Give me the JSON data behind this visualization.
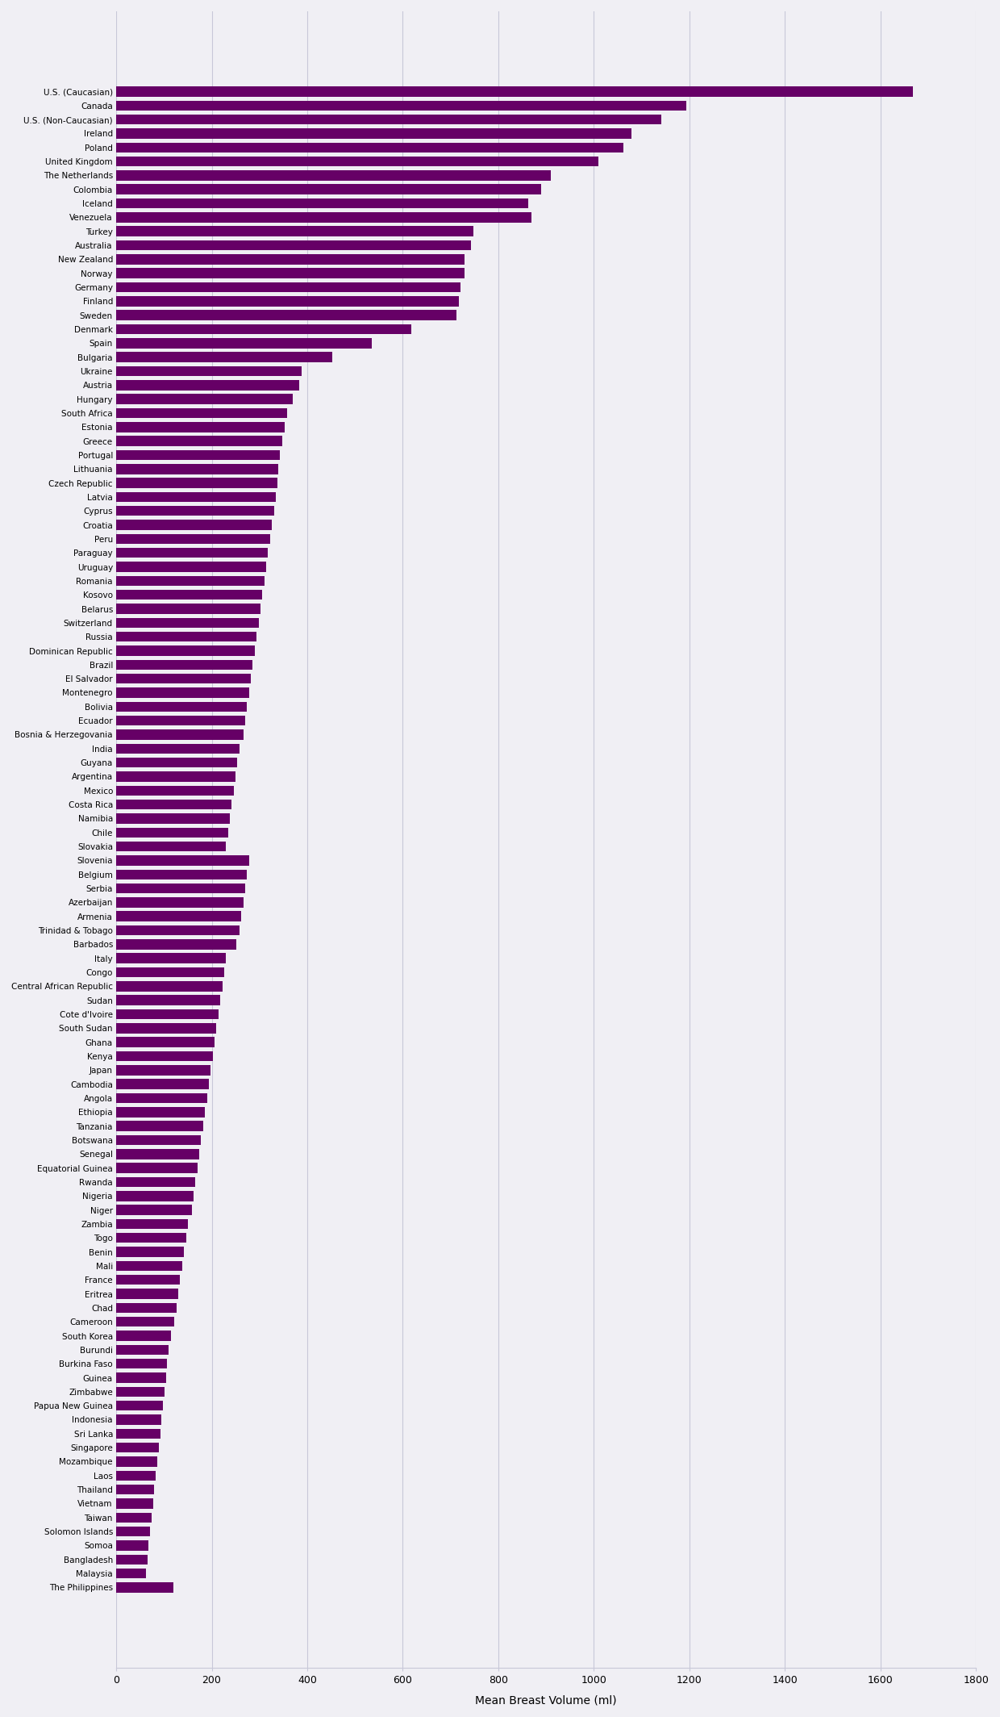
{
  "countries": [
    "U.S. (Caucasian)",
    "Canada",
    "U.S. (Non-Caucasian)",
    "Ireland",
    "Poland",
    "United Kingdom",
    "The Netherlands",
    "Colombia",
    "Iceland",
    "Venezuela",
    "Turkey",
    "Australia",
    "New Zealand",
    "Norway",
    "Germany",
    "Finland",
    "Sweden",
    "Denmark",
    "Spain",
    "Bulgaria",
    "Ukraine",
    "Austria",
    "Hungary",
    "South Africa",
    "Estonia",
    "Greece",
    "Portugal",
    "Lithuania",
    "Czech Republic",
    "Latvia",
    "Cyprus",
    "Croatia",
    "Peru",
    "Paraguay",
    "Uruguay",
    "Romania",
    "Kosovo",
    "Belarus",
    "Switzerland",
    "Russia",
    "Dominican Republic",
    "Brazil",
    "El Salvador",
    "Montenegro",
    "Bolivia",
    "Ecuador",
    "Bosnia & Herzegovania",
    "India",
    "Guyana",
    "Argentina",
    "Mexico",
    "Costa Rica",
    "Namibia",
    "Chile",
    "Slovakia",
    "Slovenia",
    "Belgium",
    "Serbia",
    "Azerbaijan",
    "Armenia",
    "Trinidad & Tobago",
    "Barbados",
    "Italy",
    "Congo",
    "Central African Republic",
    "Sudan",
    "Cote d'Ivoire",
    "South Sudan",
    "Ghana",
    "Kenya",
    "Japan",
    "Cambodia",
    "Angola",
    "Ethiopia",
    "Tanzania",
    "Botswana",
    "Senegal",
    "Equatorial Guinea",
    "Rwanda",
    "Nigeria",
    "Niger",
    "Zambia",
    "Togo",
    "Benin",
    "Mali",
    "France",
    "Eritrea",
    "Chad",
    "Cameroon",
    "South Korea",
    "Burundi",
    "Burkina Faso",
    "Guinea",
    "Zimbabwe",
    "Papua New Guinea",
    "Indonesia",
    "Sri Lanka",
    "Singapore",
    "Mozambique",
    "Laos",
    "Thailand",
    "Vietnam",
    "Taiwan",
    "Solomon Islands",
    "Somoa",
    "Bangladesh",
    "Malaysia",
    "The Philippines"
  ],
  "values": [
    1668,
    1194,
    1142,
    1079,
    1062,
    1010,
    910,
    890,
    863,
    870,
    748,
    742,
    730,
    730,
    720,
    718,
    712,
    618,
    535,
    453,
    388,
    384,
    370,
    358,
    352,
    348,
    343,
    340,
    338,
    334,
    330,
    326,
    322,
    318,
    314,
    310,
    306,
    302,
    298,
    294,
    290,
    286,
    282,
    278,
    274,
    270,
    266,
    258,
    254,
    250,
    246,
    242,
    238,
    234,
    230,
    278,
    274,
    270,
    266,
    262,
    258,
    252,
    230,
    226,
    222,
    218,
    214,
    210,
    206,
    202,
    198,
    194,
    190,
    186,
    182,
    178,
    174,
    170,
    166,
    162,
    158,
    150,
    146,
    142,
    138,
    134,
    130,
    126,
    122,
    115,
    110,
    107,
    104,
    101,
    98,
    95,
    92,
    89,
    86,
    83,
    80,
    77,
    74,
    71,
    68,
    65,
    62,
    120
  ],
  "bar_color": "#660066",
  "bg_color": "#f0eff4",
  "grid_color": "#c8c8d8",
  "xlabel": "Mean Breast Volume (ml)",
  "xlim": [
    0,
    1800
  ],
  "xticks": [
    0,
    200,
    400,
    600,
    800,
    1000,
    1200,
    1400,
    1600,
    1800
  ],
  "label_fontsize": 7.5,
  "tick_fontsize": 9
}
